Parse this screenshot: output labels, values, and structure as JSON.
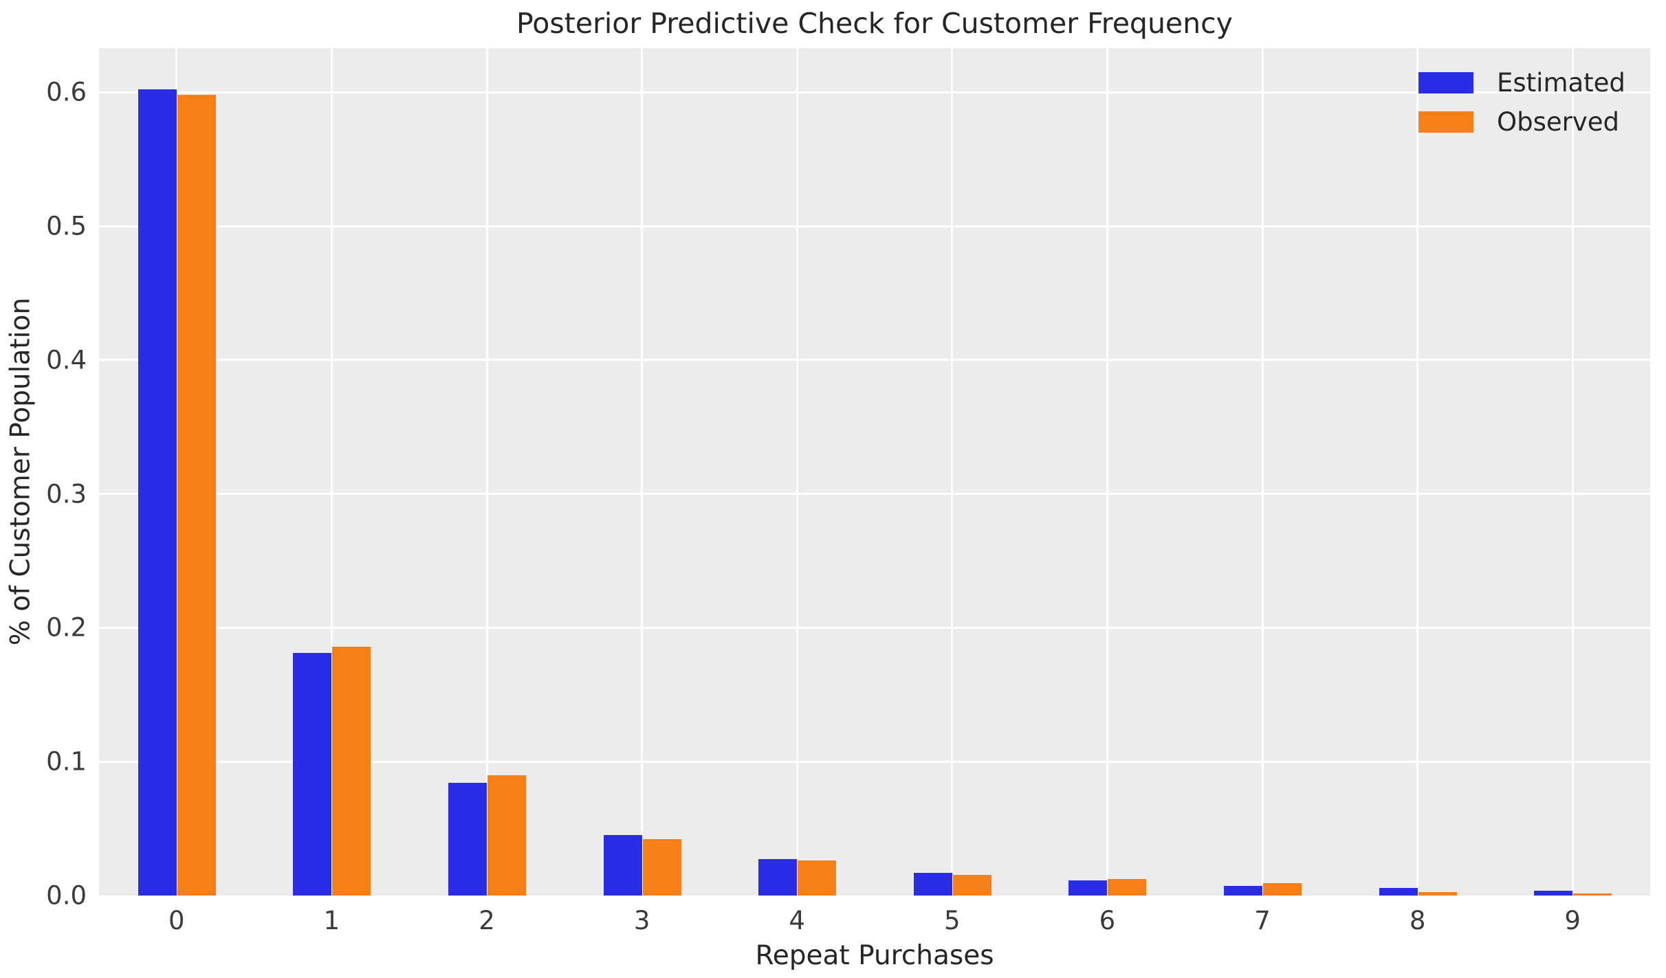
{
  "chart_data": {
    "type": "bar",
    "title": "Posterior Predictive Check for Customer Frequency",
    "xlabel": "Repeat Purchases",
    "ylabel": "% of Customer Population",
    "categories": [
      "0",
      "1",
      "2",
      "3",
      "4",
      "5",
      "6",
      "7",
      "8",
      "9"
    ],
    "series": [
      {
        "name": "Estimated",
        "color": "#2b2de6",
        "values": [
          0.602,
          0.181,
          0.084,
          0.045,
          0.027,
          0.017,
          0.0115,
          0.0073,
          0.0055,
          0.0034
        ]
      },
      {
        "name": "Observed",
        "color": "#f87e16",
        "values": [
          0.598,
          0.186,
          0.09,
          0.042,
          0.026,
          0.0155,
          0.0122,
          0.0092,
          0.0024,
          0.0015
        ]
      }
    ],
    "yticks": [
      0.0,
      0.1,
      0.2,
      0.3,
      0.4,
      0.5,
      0.6
    ],
    "ytick_labels": [
      "0.0",
      "0.1",
      "0.2",
      "0.3",
      "0.4",
      "0.5",
      "0.6"
    ],
    "ylim": [
      0,
      0.633
    ],
    "grid": true,
    "grid_color": "#ffffff",
    "plot_background": "#ececec",
    "legend_position": "upper right"
  }
}
